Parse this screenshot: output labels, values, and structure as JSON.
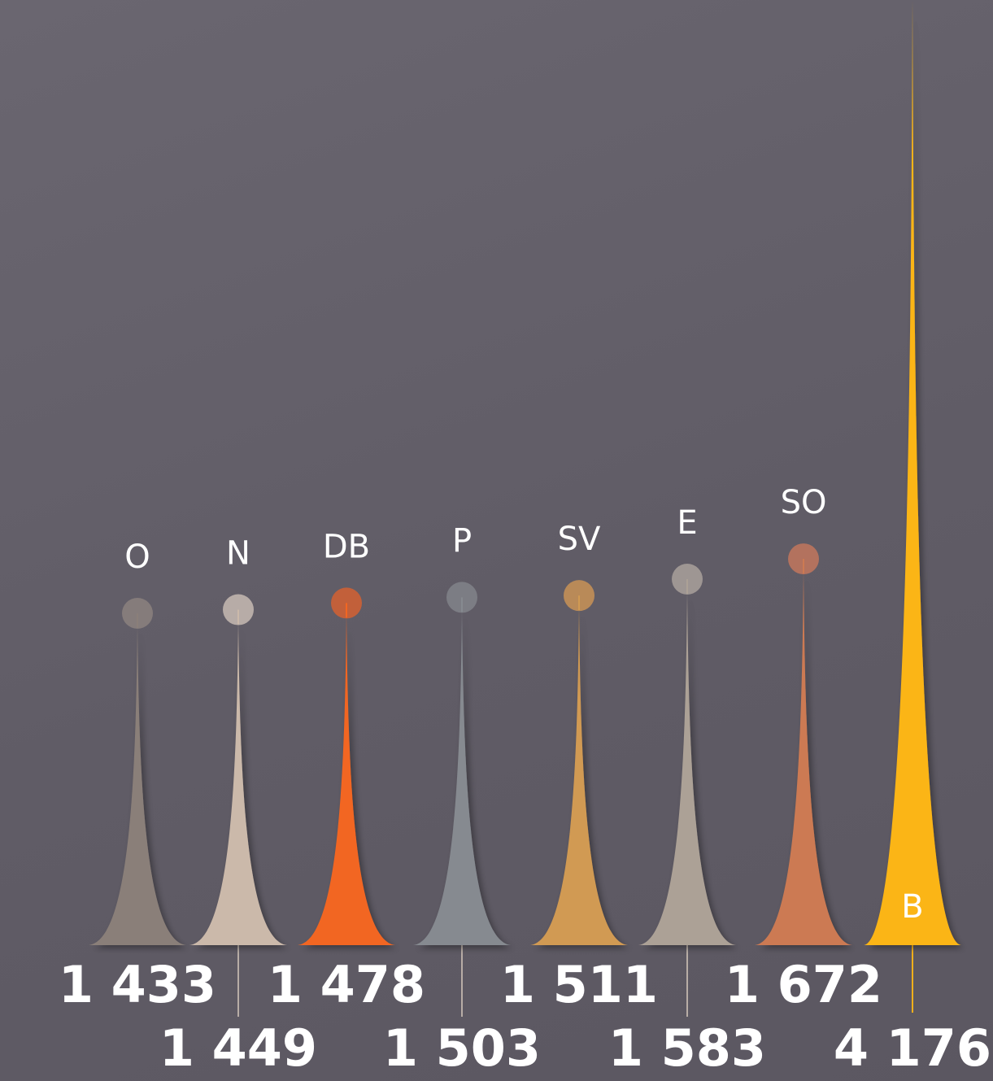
{
  "chart_data": {
    "type": "bar",
    "categories": [
      "O",
      "N",
      "DB",
      "P",
      "SV",
      "E",
      "SO",
      "B"
    ],
    "values": [
      1433,
      1449,
      1478,
      1503,
      1511,
      1583,
      1672,
      4176
    ],
    "value_labels": [
      "1 433",
      "1 449",
      "1 478",
      "1 503",
      "1 511",
      "1 583",
      "1 672",
      "4 176"
    ],
    "colors": [
      "#8a7f79",
      "#cbb9aa",
      "#f26622",
      "#868a90",
      "#d19a52",
      "#aca196",
      "#cc7a52",
      "#fbb517"
    ],
    "marker_colors": [
      "#857c7b",
      "#b7aca7",
      "#c2603a",
      "#7c7d84",
      "#b98a58",
      "#9e9693",
      "#b3725e",
      null
    ],
    "title": "",
    "xlabel": "",
    "ylabel": "",
    "ylim": [
      0,
      4176
    ],
    "grid": false,
    "legend": "none"
  }
}
